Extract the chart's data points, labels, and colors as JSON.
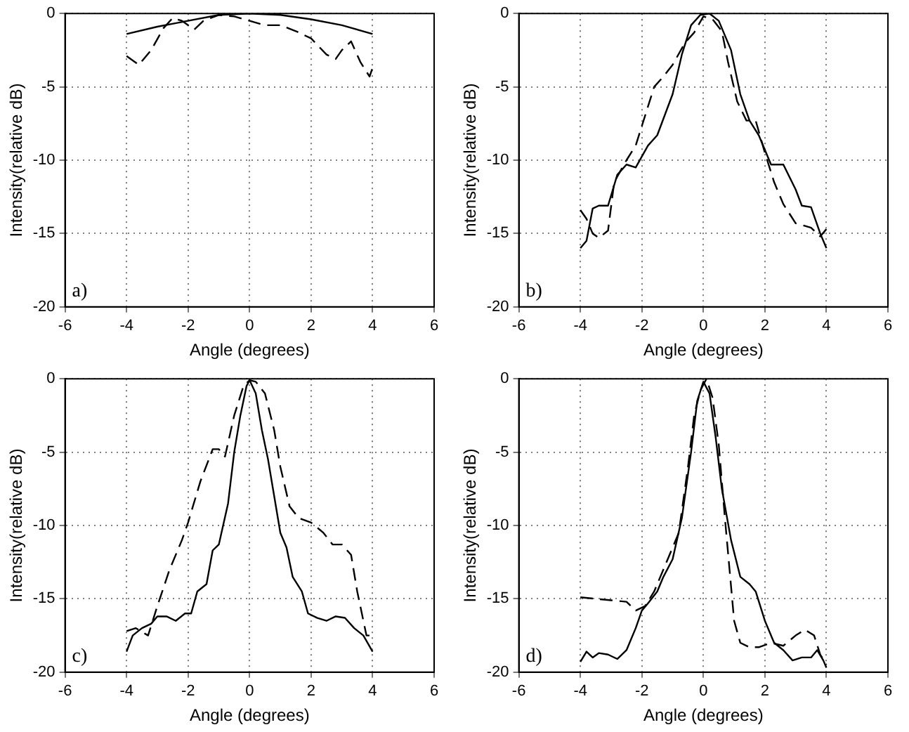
{
  "chart_data": [
    {
      "type": "line",
      "xlabel": "Angle (degrees)",
      "ylabel": "Intensity(relative dB)",
      "annotations": [
        "a)"
      ],
      "xlim": [
        -6,
        6
      ],
      "xticks": [
        -6,
        -4,
        -2,
        0,
        2,
        4,
        6
      ],
      "ylim": [
        -20,
        0
      ],
      "yticks": [
        -20,
        -15,
        -10,
        -5,
        0
      ],
      "grid": true,
      "series": [
        {
          "color": "#000000",
          "line_style": "solid",
          "x": [
            -4,
            -3,
            -2,
            -1,
            0,
            1,
            2,
            3,
            4
          ],
          "values": [
            -1.4,
            -0.9,
            -0.5,
            -0.1,
            0,
            -0.1,
            -0.4,
            -0.8,
            -1.4
          ]
        },
        {
          "color": "#000000",
          "line_style": "dashed",
          "x": [
            -4,
            -3.6,
            -3.2,
            -2.8,
            -2.5,
            -2.2,
            -1.8,
            -1.5,
            -1,
            -0.5,
            0,
            0.5,
            1,
            1.5,
            2,
            2.5,
            2.8,
            3.0,
            3.3,
            3.6,
            3.9,
            4
          ],
          "values": [
            -2.9,
            -3.5,
            -2.5,
            -1.0,
            -0.3,
            -0.5,
            -1.1,
            -0.5,
            -0.1,
            -0.2,
            -0.5,
            -0.8,
            -0.8,
            -1.2,
            -1.7,
            -2.8,
            -3.1,
            -2.5,
            -1.9,
            -3.3,
            -4.3,
            -3.7
          ]
        }
      ]
    },
    {
      "type": "line",
      "xlabel": "Angle (degrees)",
      "ylabel": "Intensity(relative dB)",
      "annotations": [
        "b)"
      ],
      "xlim": [
        -6,
        6
      ],
      "xticks": [
        -6,
        -4,
        -2,
        0,
        2,
        4,
        6
      ],
      "ylim": [
        -20,
        0
      ],
      "yticks": [
        -20,
        -15,
        -10,
        -5,
        0
      ],
      "grid": true,
      "series": [
        {
          "color": "#000000",
          "line_style": "solid",
          "x": [
            -4,
            -3.8,
            -3.6,
            -3.4,
            -3.1,
            -2.8,
            -2.5,
            -2.2,
            -1.8,
            -1.5,
            -1,
            -0.7,
            -0.4,
            -0.1,
            0.2,
            0.5,
            0.9,
            1.2,
            1.5,
            1.8,
            2.2,
            2.6,
            3.0,
            3.2,
            3.5,
            3.8,
            4
          ],
          "values": [
            -16,
            -15.5,
            -13.3,
            -13.1,
            -13.1,
            -11,
            -10.3,
            -10.5,
            -9,
            -8.3,
            -5.5,
            -2.8,
            -0.8,
            -0.1,
            0,
            -0.5,
            -2.5,
            -5.5,
            -7.3,
            -8.3,
            -10.3,
            -10.3,
            -12,
            -13.1,
            -13.2,
            -15,
            -16
          ]
        },
        {
          "color": "#000000",
          "line_style": "dashed",
          "x": [
            -4,
            -3.8,
            -3.6,
            -3.4,
            -3.1,
            -2.9,
            -2.5,
            -2.2,
            -1.9,
            -1.6,
            -1.3,
            -1,
            -0.6,
            -0.3,
            0,
            0.3,
            0.6,
            0.8,
            1.1,
            1.4,
            1.7,
            2.0,
            2.3,
            2.6,
            3.0,
            3.5,
            3.8,
            4
          ],
          "values": [
            -13.4,
            -14,
            -15,
            -15.3,
            -14.8,
            -11.5,
            -10,
            -9,
            -7,
            -5,
            -4.3,
            -3.5,
            -2,
            -1.3,
            -0.2,
            -0.4,
            -1.2,
            -3.3,
            -6,
            -7.3,
            -7.3,
            -9.5,
            -11.5,
            -13,
            -14.3,
            -14.6,
            -15.2,
            -14.7
          ]
        }
      ]
    },
    {
      "type": "line",
      "xlabel": "Angle (degrees)",
      "ylabel": "Intensity(relative dB)",
      "annotations": [
        "c)"
      ],
      "xlim": [
        -6,
        6
      ],
      "xticks": [
        -6,
        -4,
        -2,
        0,
        2,
        4,
        6
      ],
      "ylim": [
        -20,
        0
      ],
      "yticks": [
        -20,
        -15,
        -10,
        -5,
        0
      ],
      "grid": true,
      "series": [
        {
          "color": "#000000",
          "line_style": "solid",
          "x": [
            -4,
            -3.8,
            -3.5,
            -3.2,
            -3,
            -2.7,
            -2.4,
            -2.1,
            -1.9,
            -1.7,
            -1.4,
            -1.2,
            -1,
            -0.7,
            -0.5,
            -0.3,
            -0.1,
            0,
            0.2,
            0.4,
            0.6,
            0.8,
            1.0,
            1.2,
            1.4,
            1.7,
            1.9,
            2.2,
            2.5,
            2.8,
            3.1,
            3.4,
            3.7,
            4
          ],
          "values": [
            -18.6,
            -17.5,
            -17,
            -16.7,
            -16.2,
            -16.2,
            -16.5,
            -16,
            -16,
            -14.5,
            -14,
            -11.7,
            -11.3,
            -8.5,
            -5,
            -2.5,
            -0.5,
            -0.1,
            -1,
            -3.5,
            -5.5,
            -8,
            -10.5,
            -11.5,
            -13.5,
            -14.5,
            -16,
            -16.3,
            -16.5,
            -16.2,
            -16.3,
            -17,
            -17.5,
            -18.6
          ]
        },
        {
          "color": "#000000",
          "line_style": "dashed",
          "x": [
            -4,
            -3.7,
            -3.3,
            -3.0,
            -2.6,
            -2.2,
            -2,
            -1.6,
            -1.2,
            -1.0,
            -0.8,
            -0.5,
            -0.2,
            0,
            0.2,
            0.5,
            0.8,
            1.0,
            1.3,
            1.6,
            2.0,
            2.4,
            2.7,
            3.0,
            3.3,
            3.5,
            3.8,
            4
          ],
          "values": [
            -17.2,
            -17,
            -17.5,
            -15.5,
            -13,
            -11,
            -9.8,
            -7,
            -4.8,
            -4.8,
            -5.3,
            -2.5,
            -0.5,
            -0.1,
            -0.2,
            -1,
            -3.5,
            -6,
            -8.7,
            -9.5,
            -9.8,
            -10.5,
            -11.3,
            -11.3,
            -12,
            -14.5,
            -17.5,
            -17.5
          ]
        }
      ]
    },
    {
      "type": "line",
      "xlabel": "Angle (degrees)",
      "ylabel": "Intensity(relative dB)",
      "annotations": [
        "d)"
      ],
      "xlim": [
        -6,
        6
      ],
      "xticks": [
        -6,
        -4,
        -2,
        0,
        2,
        4,
        6
      ],
      "ylim": [
        -20,
        0
      ],
      "yticks": [
        -20,
        -15,
        -10,
        -5,
        0
      ],
      "grid": true,
      "series": [
        {
          "color": "#000000",
          "line_style": "solid",
          "x": [
            -4,
            -3.8,
            -3.6,
            -3.4,
            -3.1,
            -2.8,
            -2.5,
            -2.2,
            -2.0,
            -1.8,
            -1.5,
            -1.3,
            -1.0,
            -0.7,
            -0.4,
            -0.2,
            0,
            0.2,
            0.4,
            0.6,
            0.9,
            1.2,
            1.5,
            1.7,
            2.0,
            2.3,
            2.6,
            2.9,
            3.2,
            3.5,
            3.7,
            3.9,
            4
          ],
          "values": [
            -19.3,
            -18.6,
            -19,
            -18.7,
            -18.8,
            -19.1,
            -18.5,
            -17,
            -15.8,
            -15.3,
            -14.5,
            -13.5,
            -12.3,
            -9.5,
            -5,
            -1.5,
            -0.2,
            -1.0,
            -4,
            -7.5,
            -11,
            -13.5,
            -14,
            -14.5,
            -16.5,
            -18,
            -18.5,
            -19.2,
            -19,
            -19,
            -18.5,
            -19.2,
            -19.7
          ]
        },
        {
          "color": "#000000",
          "line_style": "dashed",
          "x": [
            -4,
            -3.5,
            -3,
            -2.5,
            -2.2,
            -1.9,
            -1.6,
            -1.2,
            -0.8,
            -0.5,
            -0.3,
            -0.1,
            0.1,
            0.3,
            0.5,
            0.7,
            1.0,
            1.2,
            1.5,
            1.8,
            2.2,
            2.6,
            3.0,
            3.3,
            3.6,
            3.8,
            4
          ],
          "values": [
            -14.9,
            -15,
            -15.1,
            -15.2,
            -15.8,
            -15.5,
            -14.5,
            -12.5,
            -10.5,
            -6,
            -2.5,
            -0.8,
            0,
            -1.3,
            -4.5,
            -9.5,
            -16.5,
            -18,
            -18.3,
            -18.3,
            -18,
            -18.2,
            -17.5,
            -17.1,
            -17.5,
            -18.8,
            -19.5
          ]
        }
      ]
    }
  ]
}
